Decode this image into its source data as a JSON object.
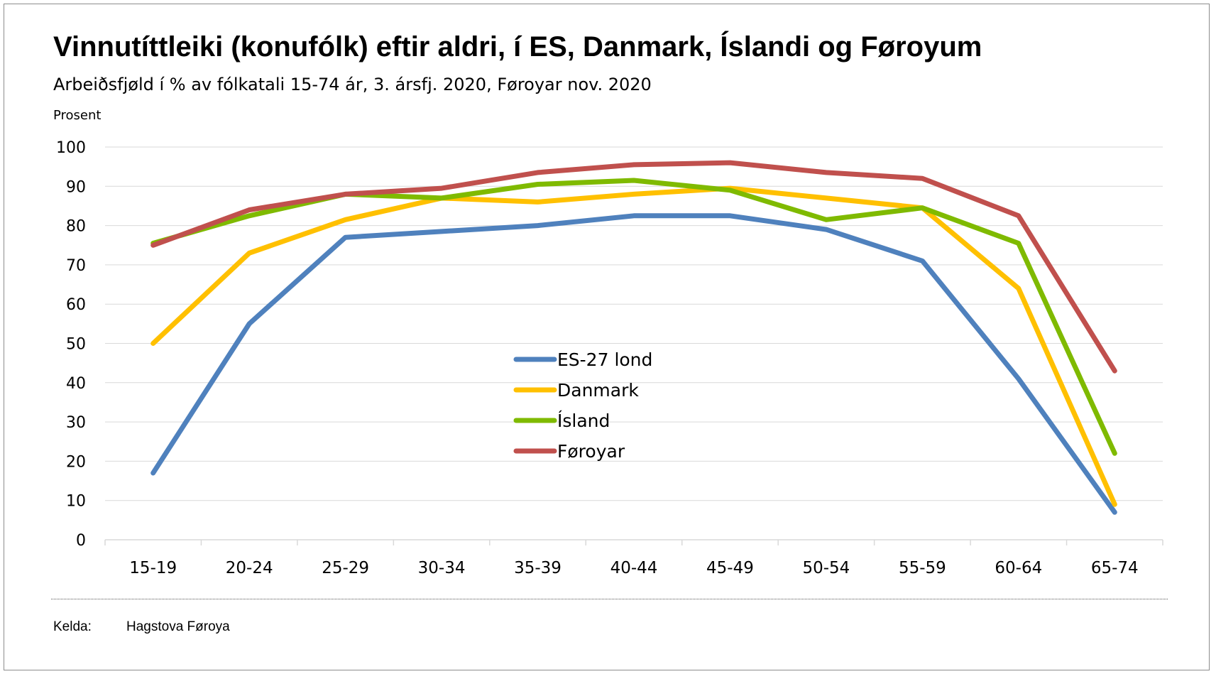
{
  "chart_data": {
    "type": "line",
    "title": "Vinnutíttleiki (konufólk) eftir aldri, í ES, Danmark, Íslandi og Føroyum",
    "subtitle": "Arbeiðsfjøld í % av fólkatali 15-74 ár, 3. ársfj. 2020, Føroyar nov. 2020",
    "ylabel": "Prosent",
    "xlabel": "",
    "ylim": [
      0,
      100
    ],
    "yticks": [
      0,
      10,
      20,
      30,
      40,
      50,
      60,
      70,
      80,
      90,
      100
    ],
    "grid": true,
    "legend_position": "center",
    "categories": [
      "15-19",
      "20-24",
      "25-29",
      "30-34",
      "35-39",
      "40-44",
      "45-49",
      "50-54",
      "55-59",
      "60-64",
      "65-74"
    ],
    "series": [
      {
        "name": "ES-27 lond",
        "color": "#4f81bd",
        "values": [
          17,
          55,
          77,
          78.5,
          80,
          82.5,
          82.5,
          79,
          71,
          41,
          7
        ]
      },
      {
        "name": "Danmark",
        "color": "#ffc000",
        "values": [
          50,
          73,
          81.5,
          87,
          86,
          88,
          89.5,
          87,
          84.5,
          64,
          9
        ]
      },
      {
        "name": "Ísland",
        "color": "#7fba00",
        "values": [
          75.5,
          82.5,
          88,
          87,
          90.5,
          91.5,
          89,
          81.5,
          84.5,
          75.5,
          22
        ]
      },
      {
        "name": "Føroyar",
        "color": "#c0504d",
        "values": [
          75,
          84,
          88,
          89.5,
          93.5,
          95.5,
          96,
          93.5,
          92,
          82.5,
          43
        ]
      }
    ]
  },
  "footer": {
    "source_label": "Kelda:",
    "source_value": "Hagstova Føroya"
  }
}
